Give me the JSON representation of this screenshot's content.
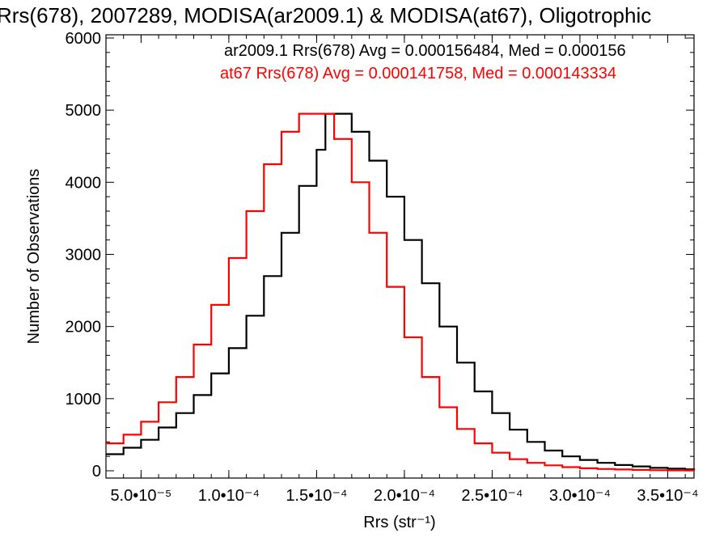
{
  "chart_data": {
    "type": "line",
    "title": "Rrs(678), 2007289, MODISA(ar2009.1) & MODISA(at67), Oligotrophic",
    "xlabel": "Rrs (str⁻¹)",
    "ylabel": "Number of Observations",
    "xlim": [
      3e-05,
      0.000365
    ],
    "ylim": [
      0,
      6000
    ],
    "x_ticks": [
      5e-05,
      0.0001,
      0.00015,
      0.0002,
      0.00025,
      0.0003,
      0.00035
    ],
    "x_tick_labels": [
      "5.0•10⁻⁵",
      "1.0•10⁻⁴",
      "1.5•10⁻⁴",
      "2.0•10⁻⁴",
      "2.5•10⁻⁴",
      "3.0•10⁻⁴",
      "3.5•10⁻⁴"
    ],
    "y_ticks": [
      0,
      1000,
      2000,
      3000,
      4000,
      5000,
      6000
    ],
    "y_tick_labels": [
      "0",
      "1000",
      "2000",
      "3000",
      "4000",
      "5000",
      "6000"
    ],
    "grid": false,
    "legend_position": "top-right",
    "series": [
      {
        "name": "ar2009.1",
        "color": "#000000",
        "label": "ar2009.1 Rrs(678) Avg = 0.000156484, Med = 0.000156",
        "x": [
          3e-05,
          4e-05,
          5e-05,
          6e-05,
          7e-05,
          8e-05,
          9e-05,
          0.0001,
          0.00011,
          0.00012,
          0.00013,
          0.00014,
          0.00015,
          0.000155,
          0.00016,
          0.00017,
          0.00018,
          0.00019,
          0.0002,
          0.00021,
          0.00022,
          0.00023,
          0.00024,
          0.00025,
          0.00026,
          0.00027,
          0.00028,
          0.00029,
          0.0003,
          0.00031,
          0.00032,
          0.00033,
          0.00034,
          0.00035,
          0.00036,
          0.000365
        ],
        "y": [
          230,
          320,
          430,
          600,
          800,
          1050,
          1350,
          1700,
          2150,
          2700,
          3300,
          3950,
          4450,
          4950,
          4950,
          4700,
          4300,
          3800,
          3200,
          2600,
          2000,
          1500,
          1100,
          800,
          570,
          400,
          280,
          200,
          150,
          110,
          80,
          60,
          40,
          30,
          20,
          15
        ]
      },
      {
        "name": "at67",
        "color": "#ff0000",
        "label": "at67 Rrs(678) Avg = 0.000141758, Med = 0.000143334",
        "x": [
          3e-05,
          4e-05,
          5e-05,
          6e-05,
          7e-05,
          8e-05,
          9e-05,
          0.0001,
          0.00011,
          0.00012,
          0.00013,
          0.00014,
          0.00015,
          0.00016,
          0.00017,
          0.00018,
          0.00019,
          0.0002,
          0.00021,
          0.00022,
          0.00023,
          0.00024,
          0.00025,
          0.00026,
          0.00027,
          0.00028,
          0.00029,
          0.0003,
          0.00031,
          0.00032,
          0.00033,
          0.00034,
          0.00035,
          0.00036,
          0.000365
        ],
        "y": [
          380,
          500,
          680,
          950,
          1300,
          1750,
          2300,
          2950,
          3600,
          4250,
          4700,
          4950,
          4950,
          4600,
          4000,
          3300,
          2550,
          1850,
          1300,
          880,
          580,
          380,
          250,
          160,
          110,
          75,
          50,
          35,
          25,
          18,
          12,
          8,
          6,
          4,
          3
        ]
      }
    ]
  }
}
